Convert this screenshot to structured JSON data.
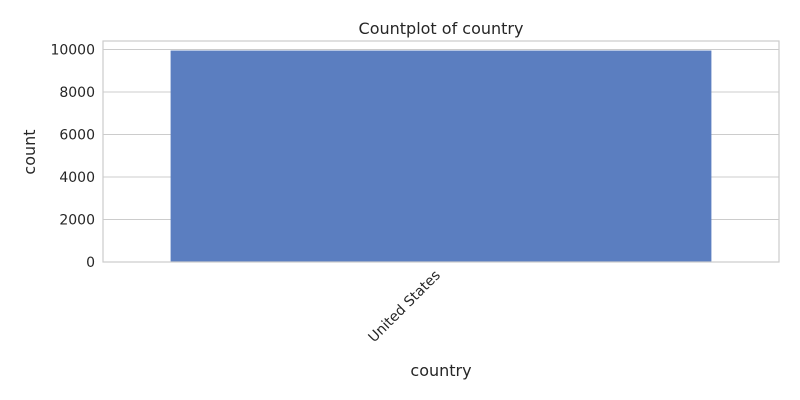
{
  "chart_data": {
    "type": "bar",
    "title": "Countplot of country",
    "xlabel": "country",
    "ylabel": "count",
    "categories": [
      "United States"
    ],
    "values": [
      9950
    ],
    "ylim": [
      0,
      10400
    ],
    "yticks": [
      0,
      2000,
      4000,
      6000,
      8000,
      10000
    ],
    "grid": "horizontal",
    "x_tick_rotation": -45,
    "colors": {
      "bar": "#5b7ec0",
      "grid": "#cccccc"
    }
  }
}
